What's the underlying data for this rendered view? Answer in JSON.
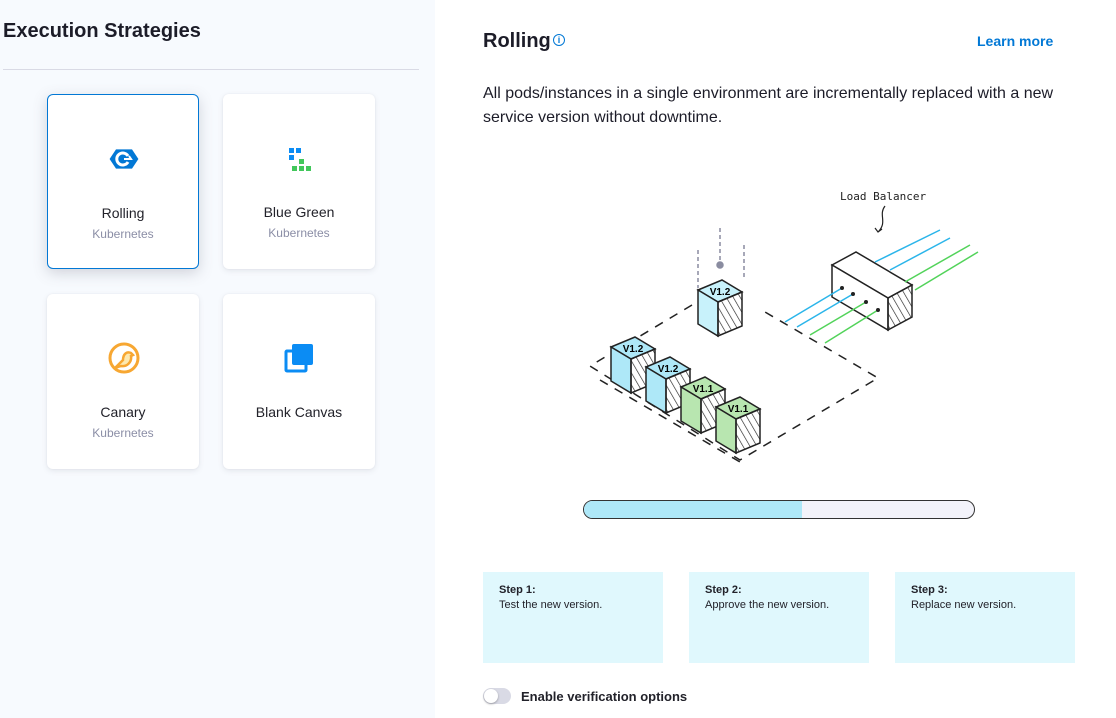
{
  "left": {
    "title": "Execution Strategies",
    "cards": [
      {
        "name": "Rolling",
        "sub": "Kubernetes",
        "icon": "rolling-icon",
        "selected": true
      },
      {
        "name": "Blue Green",
        "sub": "Kubernetes",
        "icon": "blue-green-icon"
      },
      {
        "name": "Canary",
        "sub": "Kubernetes",
        "icon": "canary-icon"
      },
      {
        "name": "Blank Canvas",
        "sub": "",
        "icon": "blank-canvas-icon"
      }
    ]
  },
  "right": {
    "title": "Rolling",
    "info_icon": "info-icon",
    "learn_more": "Learn more",
    "description": "All pods/instances in a single environment are incrementally replaced with a new service version without downtime.",
    "illustration": {
      "load_balancer": "Load Balancer",
      "pods": [
        "V1.2",
        "V1.2",
        "V1.2",
        "V1.1",
        "V1.1"
      ]
    },
    "progress_percent": 56,
    "steps": [
      {
        "label": "Step 1:",
        "text": "Test the new version."
      },
      {
        "label": "Step 2:",
        "text": "Approve the new version."
      },
      {
        "label": "Step 3:",
        "text": "Replace new version."
      }
    ],
    "verification": {
      "label": "Enable verification options",
      "enabled": false
    }
  },
  "colors": {
    "accent": "#0278d5",
    "new_pod": "#aee8f8",
    "old_pod": "#b8e6b0",
    "step_bg": "#e0f8fd"
  }
}
